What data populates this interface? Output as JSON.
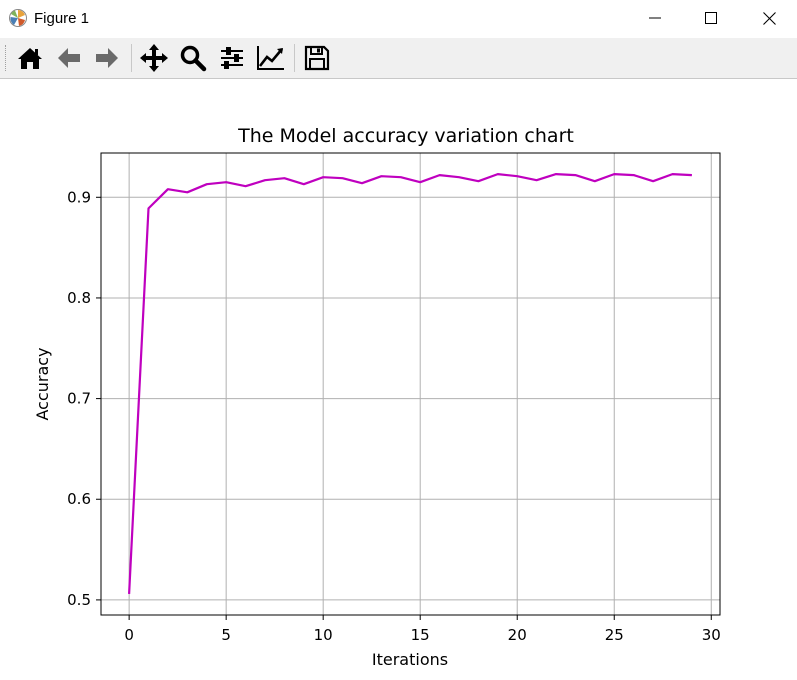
{
  "window": {
    "title": "Figure 1",
    "icons": [
      "matplotlib-icon",
      "minimize-icon",
      "maximize-icon",
      "close-icon"
    ]
  },
  "toolbar": {
    "items": [
      "home-icon",
      "back-arrow-icon",
      "forward-arrow-icon",
      "pan-icon",
      "zoom-icon",
      "configure-subplots-icon",
      "edit-axis-icon",
      "save-icon"
    ]
  },
  "chart_data": {
    "type": "line",
    "title": "The Model accuracy variation chart",
    "xlabel": "Iterations",
    "ylabel": "Accuracy",
    "xlim": [
      -1.45,
      30.45
    ],
    "ylim": [
      0.485,
      0.944
    ],
    "xticks": [
      0,
      5,
      10,
      15,
      20,
      25,
      30
    ],
    "xtick_labels": [
      "0",
      "5",
      "10",
      "15",
      "20",
      "25",
      "30"
    ],
    "yticks": [
      0.5,
      0.6,
      0.7,
      0.8,
      0.9
    ],
    "ytick_labels": [
      "0.5",
      "0.6",
      "0.7",
      "0.8",
      "0.9"
    ],
    "grid": true,
    "line_color": "#bf00bf",
    "series": [
      {
        "x": [
          0,
          1,
          2,
          3,
          4,
          5,
          6,
          7,
          8,
          9,
          10,
          11,
          12,
          13,
          14,
          15,
          16,
          17,
          18,
          19,
          20,
          21,
          22,
          23,
          24,
          25,
          26,
          27,
          28,
          29
        ],
        "y": [
          0.506,
          0.889,
          0.908,
          0.905,
          0.913,
          0.915,
          0.911,
          0.917,
          0.919,
          0.913,
          0.92,
          0.919,
          0.914,
          0.921,
          0.92,
          0.915,
          0.922,
          0.92,
          0.916,
          0.923,
          0.921,
          0.917,
          0.923,
          0.922,
          0.916,
          0.923,
          0.922,
          0.916,
          0.923,
          0.922
        ]
      }
    ]
  }
}
